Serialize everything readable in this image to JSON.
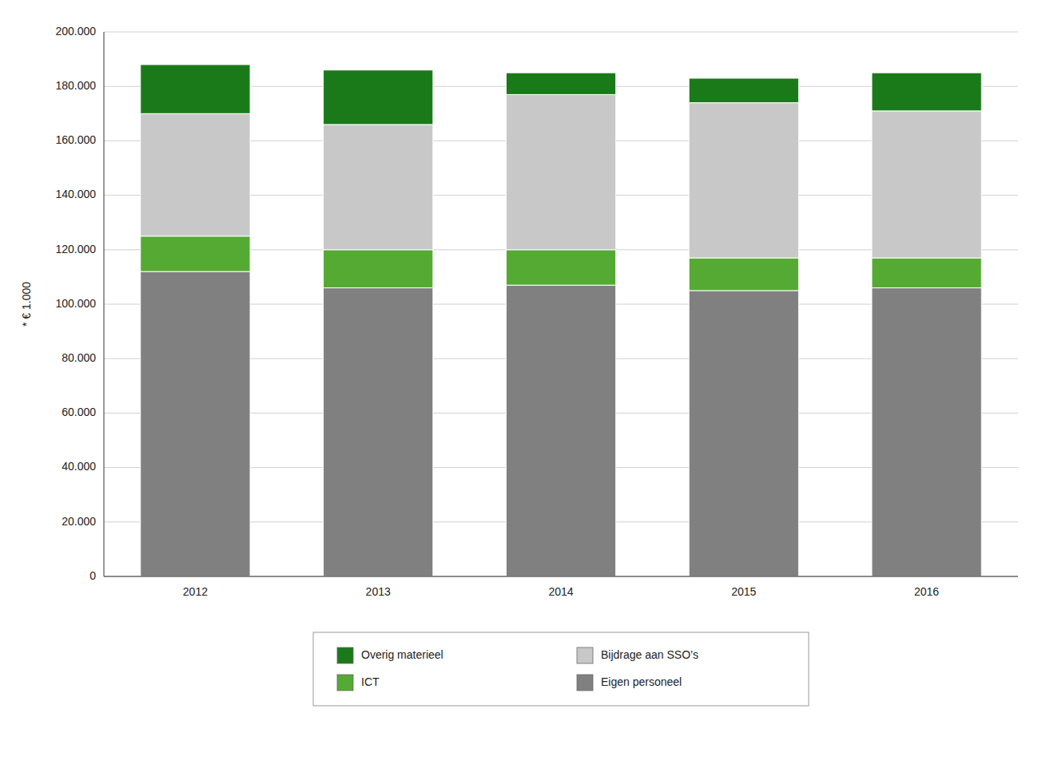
{
  "chart_data": {
    "type": "bar",
    "stacked": true,
    "categories": [
      "2012",
      "2013",
      "2014",
      "2015",
      "2016"
    ],
    "series": [
      {
        "name": "Eigen personeel",
        "color": "#808080",
        "values": [
          112000,
          106000,
          107000,
          105000,
          106000
        ]
      },
      {
        "name": "ICT",
        "color": "#55AA33",
        "values": [
          13000,
          14000,
          13000,
          12000,
          11000
        ]
      },
      {
        "name": "Bijdrage aan SSO’s",
        "color": "#C8C8C8",
        "values": [
          45000,
          46000,
          57000,
          57000,
          54000
        ]
      },
      {
        "name": "Overig materieel",
        "color": "#1A7A1A",
        "values": [
          18000,
          20000,
          8000,
          9000,
          14000
        ]
      }
    ],
    "ylabel": "* € 1.000",
    "ylim": [
      0,
      200000
    ],
    "yticks": [
      0,
      {
        "value": 20000,
        "label": "20.000"
      },
      {
        "value": 40000,
        "label": "40.000"
      },
      {
        "value": 60000,
        "label": "60.000"
      },
      {
        "value": 80000,
        "label": "80.000"
      },
      {
        "value": 100000,
        "label": "100.000"
      },
      {
        "value": 120000,
        "label": "120.000"
      },
      {
        "value": 140000,
        "label": "140.000"
      },
      {
        "value": 160000,
        "label": "160.000"
      },
      {
        "value": 180000,
        "label": "180.000"
      },
      {
        "value": 200000,
        "label": "200.000"
      }
    ],
    "grid": true,
    "legend": "bottom"
  }
}
